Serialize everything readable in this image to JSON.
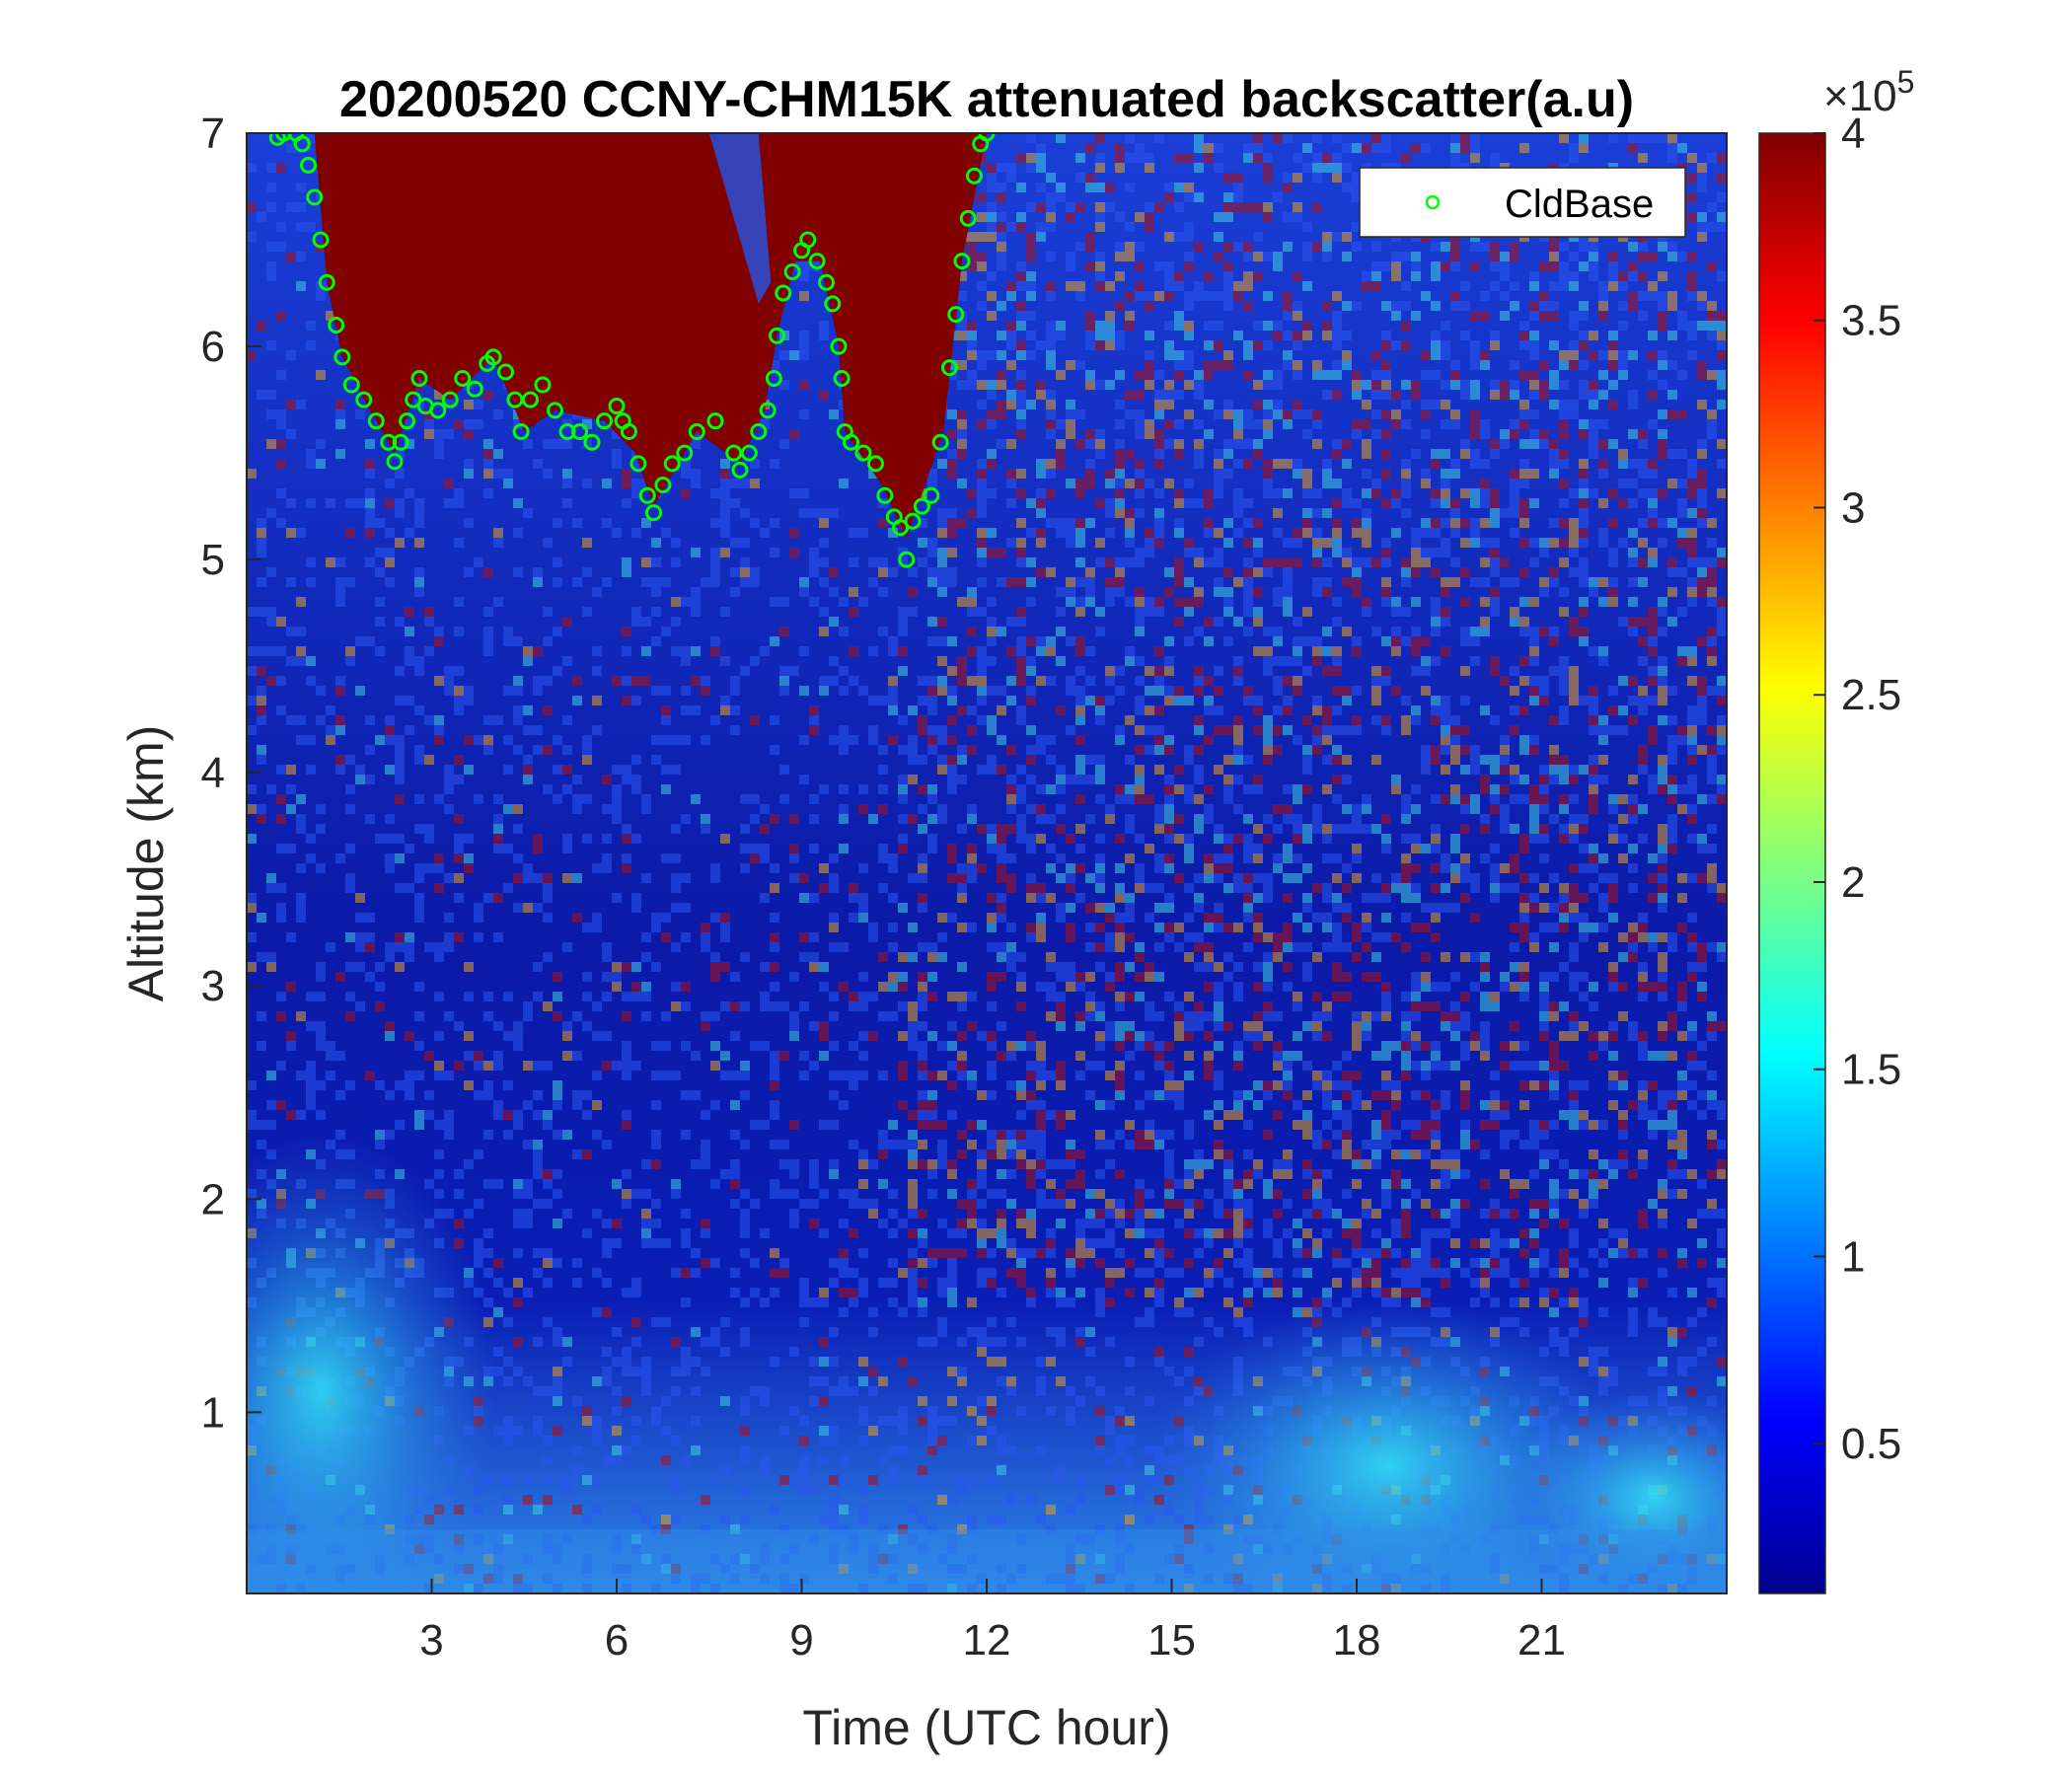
{
  "chart_data": {
    "type": "heatmap",
    "title": "20200520 CCNY-CHM15K attenuated backscatter(a.u)",
    "xlabel": "Time (UTC hour)",
    "ylabel": "Altitude (km)",
    "xlim": [
      0,
      24
    ],
    "ylim": [
      0.15,
      7
    ],
    "xticks": [
      3,
      6,
      9,
      12,
      15,
      18,
      21
    ],
    "yticks": [
      1,
      2,
      3,
      4,
      5,
      6,
      7
    ],
    "colorbar": {
      "colormap": "jet",
      "clim": [
        0.1,
        4.0
      ],
      "ticks": [
        0.5,
        1,
        1.5,
        2,
        2.5,
        3,
        3.5,
        4
      ],
      "tick_labels": [
        "0.5",
        "1",
        "1.5",
        "2",
        "2.5",
        "3",
        "3.5",
        "4"
      ],
      "exponent_prefix": "×10",
      "exponent_power": "5"
    },
    "legend": {
      "entries": [
        "CldBase"
      ],
      "location": "top-right",
      "marker": "circle",
      "color": "#00ff00"
    },
    "cloud_base": {
      "name": "CldBase",
      "color": "#00ff00",
      "points": [
        [
          0.5,
          6.98
        ],
        [
          0.6,
          7.0
        ],
        [
          0.8,
          7.0
        ],
        [
          0.9,
          6.95
        ],
        [
          1.0,
          6.85
        ],
        [
          1.1,
          6.7
        ],
        [
          1.2,
          6.5
        ],
        [
          1.3,
          6.3
        ],
        [
          1.45,
          6.1
        ],
        [
          1.55,
          5.95
        ],
        [
          1.7,
          5.82
        ],
        [
          1.9,
          5.75
        ],
        [
          2.1,
          5.65
        ],
        [
          2.3,
          5.55
        ],
        [
          2.4,
          5.46
        ],
        [
          2.5,
          5.55
        ],
        [
          2.6,
          5.65
        ],
        [
          2.7,
          5.75
        ],
        [
          2.8,
          5.85
        ],
        [
          2.9,
          5.72
        ],
        [
          3.1,
          5.7
        ],
        [
          3.3,
          5.75
        ],
        [
          3.5,
          5.85
        ],
        [
          3.7,
          5.8
        ],
        [
          3.9,
          5.92
        ],
        [
          4.0,
          5.95
        ],
        [
          4.2,
          5.88
        ],
        [
          4.35,
          5.75
        ],
        [
          4.45,
          5.6
        ],
        [
          4.6,
          5.75
        ],
        [
          4.8,
          5.82
        ],
        [
          5.0,
          5.7
        ],
        [
          5.2,
          5.6
        ],
        [
          5.4,
          5.6
        ],
        [
          5.6,
          5.55
        ],
        [
          5.8,
          5.65
        ],
        [
          6.0,
          5.72
        ],
        [
          6.1,
          5.65
        ],
        [
          6.2,
          5.6
        ],
        [
          6.35,
          5.45
        ],
        [
          6.5,
          5.3
        ],
        [
          6.6,
          5.22
        ],
        [
          6.75,
          5.35
        ],
        [
          6.9,
          5.45
        ],
        [
          7.1,
          5.5
        ],
        [
          7.3,
          5.6
        ],
        [
          7.6,
          5.65
        ],
        [
          7.9,
          5.5
        ],
        [
          8.0,
          5.42
        ],
        [
          8.15,
          5.5
        ],
        [
          8.3,
          5.6
        ],
        [
          8.45,
          5.7
        ],
        [
          8.55,
          5.85
        ],
        [
          8.6,
          6.05
        ],
        [
          8.7,
          6.25
        ],
        [
          8.85,
          6.35
        ],
        [
          9.0,
          6.45
        ],
        [
          9.1,
          6.5
        ],
        [
          9.25,
          6.4
        ],
        [
          9.4,
          6.3
        ],
        [
          9.5,
          6.2
        ],
        [
          9.6,
          6.0
        ],
        [
          9.65,
          5.85
        ],
        [
          9.7,
          5.6
        ],
        [
          9.8,
          5.55
        ],
        [
          10.0,
          5.5
        ],
        [
          10.2,
          5.45
        ],
        [
          10.35,
          5.3
        ],
        [
          10.5,
          5.2
        ],
        [
          10.6,
          5.15
        ],
        [
          10.7,
          5.0
        ],
        [
          10.8,
          5.18
        ],
        [
          10.95,
          5.25
        ],
        [
          11.1,
          5.3
        ],
        [
          11.25,
          5.55
        ],
        [
          11.4,
          5.9
        ],
        [
          11.5,
          6.15
        ],
        [
          11.6,
          6.4
        ],
        [
          11.7,
          6.6
        ],
        [
          11.8,
          6.8
        ],
        [
          11.9,
          6.95
        ],
        [
          12.0,
          7.0
        ]
      ]
    },
    "cloud_top_outline": [
      [
        1.1,
        7.0
      ],
      [
        12.0,
        7.0
      ],
      [
        11.6,
        6.4
      ],
      [
        11.3,
        5.6
      ],
      [
        10.7,
        5.1
      ],
      [
        10.3,
        5.35
      ],
      [
        9.7,
        5.6
      ],
      [
        9.6,
        6.0
      ],
      [
        9.3,
        6.4
      ],
      [
        8.9,
        6.4
      ],
      [
        8.6,
        6.05
      ],
      [
        8.4,
        5.7
      ],
      [
        8.0,
        5.45
      ],
      [
        7.3,
        5.6
      ],
      [
        6.6,
        5.25
      ],
      [
        6.3,
        5.5
      ],
      [
        5.8,
        5.65
      ],
      [
        5.0,
        5.7
      ],
      [
        4.5,
        5.6
      ],
      [
        4.0,
        5.95
      ],
      [
        3.3,
        5.75
      ],
      [
        2.8,
        5.85
      ],
      [
        2.4,
        5.5
      ],
      [
        2.0,
        5.7
      ],
      [
        1.55,
        5.95
      ],
      [
        1.3,
        6.3
      ]
    ],
    "gap_region_outline": [
      [
        7.5,
        7.0
      ],
      [
        8.3,
        7.0
      ],
      [
        8.5,
        6.3
      ],
      [
        8.3,
        6.2
      ],
      [
        7.9,
        6.6
      ]
    ]
  }
}
